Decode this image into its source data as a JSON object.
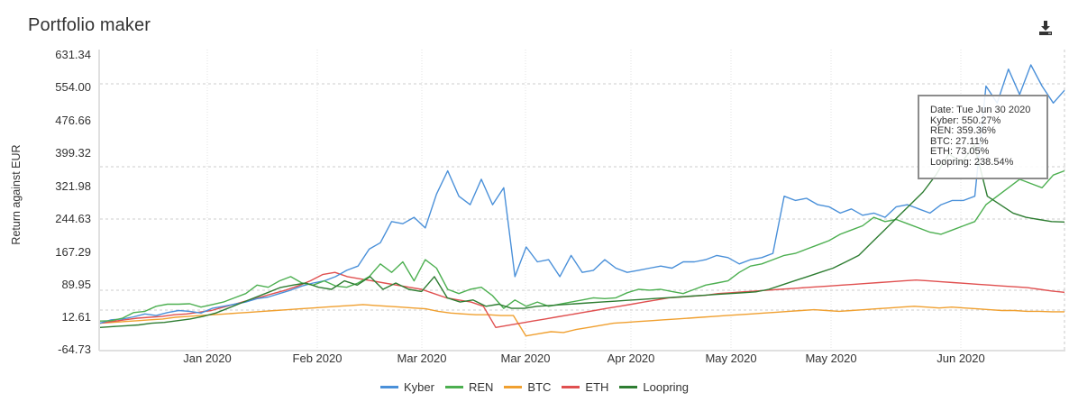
{
  "header": {
    "title": "Portfolio maker",
    "download_icon": "download-icon"
  },
  "tooltip": {
    "date": "Date: Tue Jun 30 2020",
    "lines": [
      "Kyber: 550.27%",
      "REN: 359.36%",
      "BTC: 27.11%",
      "ETH: 73.05%",
      "Loopring: 238.54%"
    ]
  },
  "chart_data": {
    "type": "line",
    "title": "Portfolio maker",
    "xlabel": "",
    "ylabel": "Return against EUR",
    "ylim": [
      -64.73,
      631.34
    ],
    "y_ticks": [
      "631.34",
      "554.00",
      "476.66",
      "399.32",
      "321.98",
      "244.63",
      "167.29",
      "89.95",
      "12.61",
      "-64.73"
    ],
    "x_ticks": [
      "Jan 2020",
      "Feb 2020",
      "Mar 2020",
      "Mar 2020",
      "Apr 2020",
      "May 2020",
      "May 2020",
      "Jun 2020"
    ],
    "legend": [
      "Kyber",
      "REN",
      "BTC",
      "ETH",
      "Loopring"
    ],
    "legend_position": "bottom",
    "grid": true,
    "x_range": [
      "Dec 2019",
      "Jun 30 2020"
    ],
    "series": [
      {
        "name": "Kyber",
        "color": "#4a90d9",
        "values": [
          0,
          8,
          10,
          15,
          22,
          18,
          25,
          30,
          28,
          24,
          35,
          40,
          45,
          50,
          58,
          62,
          70,
          78,
          88,
          95,
          100,
          110,
          125,
          135,
          175,
          190,
          240,
          235,
          250,
          225,
          305,
          360,
          300,
          280,
          340,
          280,
          320,
          110,
          180,
          145,
          150,
          110,
          160,
          120,
          125,
          150,
          130,
          120,
          125,
          130,
          135,
          130,
          145,
          145,
          150,
          160,
          155,
          140,
          150,
          155,
          165,
          300,
          290,
          295,
          280,
          275,
          260,
          270,
          255,
          260,
          250,
          275,
          280,
          270,
          260,
          280,
          290,
          290,
          300,
          560,
          520,
          600,
          540,
          610,
          560,
          520,
          550
        ]
      },
      {
        "name": "REN",
        "color": "#4caf50",
        "values": [
          5,
          6,
          12,
          25,
          28,
          40,
          45,
          45,
          46,
          38,
          44,
          50,
          60,
          70,
          90,
          85,
          100,
          110,
          95,
          90,
          100,
          88,
          85,
          95,
          110,
          140,
          120,
          145,
          100,
          150,
          130,
          80,
          70,
          80,
          85,
          65,
          35,
          55,
          40,
          50,
          40,
          45,
          50,
          55,
          60,
          58,
          60,
          72,
          80,
          78,
          80,
          75,
          70,
          80,
          90,
          95,
          100,
          120,
          135,
          140,
          150,
          160,
          165,
          175,
          185,
          195,
          210,
          220,
          230,
          250,
          240,
          245,
          235,
          225,
          215,
          210,
          220,
          230,
          240,
          280,
          300,
          320,
          340,
          330,
          320,
          350,
          360
        ]
      },
      {
        "name": "BTC",
        "color": "#f0a030",
        "values": [
          0,
          2,
          4,
          6,
          8,
          10,
          14,
          16,
          18,
          20,
          22,
          24,
          26,
          28,
          30,
          32,
          34,
          36,
          38,
          40,
          42,
          44,
          42,
          40,
          38,
          36,
          34,
          28,
          24,
          22,
          20,
          20,
          18,
          18,
          -30,
          -25,
          -20,
          -22,
          -15,
          -10,
          -5,
          0,
          2,
          4,
          6,
          8,
          10,
          12,
          14,
          16,
          18,
          20,
          22,
          24,
          26,
          28,
          30,
          32,
          30,
          28,
          30,
          32,
          34,
          36,
          38,
          40,
          38,
          36,
          38,
          36,
          34,
          32,
          30,
          30,
          28,
          28,
          27,
          27
        ]
      },
      {
        "name": "ETH",
        "color": "#e05050",
        "values": [
          0,
          4,
          8,
          12,
          14,
          16,
          20,
          22,
          26,
          30,
          38,
          46,
          54,
          62,
          70,
          78,
          88,
          100,
          115,
          120,
          110,
          105,
          100,
          95,
          90,
          85,
          80,
          70,
          60,
          55,
          50,
          40,
          -10,
          -5,
          0,
          5,
          10,
          15,
          20,
          25,
          30,
          35,
          40,
          45,
          50,
          55,
          60,
          62,
          64,
          66,
          70,
          72,
          74,
          76,
          78,
          80,
          82,
          84,
          86,
          88,
          90,
          92,
          94,
          96,
          98,
          100,
          102,
          100,
          98,
          96,
          94,
          92,
          90,
          88,
          86,
          84,
          80,
          76,
          73
        ]
      },
      {
        "name": "Loopring",
        "color": "#2e7d32",
        "values": [
          -10,
          -8,
          -6,
          -4,
          0,
          2,
          6,
          10,
          16,
          24,
          36,
          48,
          60,
          72,
          84,
          90,
          95,
          85,
          80,
          100,
          90,
          110,
          80,
          95,
          80,
          75,
          110,
          60,
          50,
          55,
          40,
          45,
          35,
          35,
          40,
          42,
          44,
          46,
          48,
          50,
          52,
          54,
          56,
          58,
          60,
          62,
          64,
          66,
          68,
          70,
          72,
          74,
          80,
          90,
          100,
          110,
          120,
          130,
          145,
          160,
          190,
          220,
          250,
          280,
          310,
          350,
          400,
          380,
          420,
          300,
          280,
          260,
          250,
          245,
          240,
          239
        ]
      }
    ]
  },
  "legend": {
    "items": [
      {
        "label": "Kyber",
        "color": "#4a90d9"
      },
      {
        "label": "REN",
        "color": "#4caf50"
      },
      {
        "label": "BTC",
        "color": "#f0a030"
      },
      {
        "label": "ETH",
        "color": "#e05050"
      },
      {
        "label": "Loopring",
        "color": "#2e7d32"
      }
    ]
  }
}
